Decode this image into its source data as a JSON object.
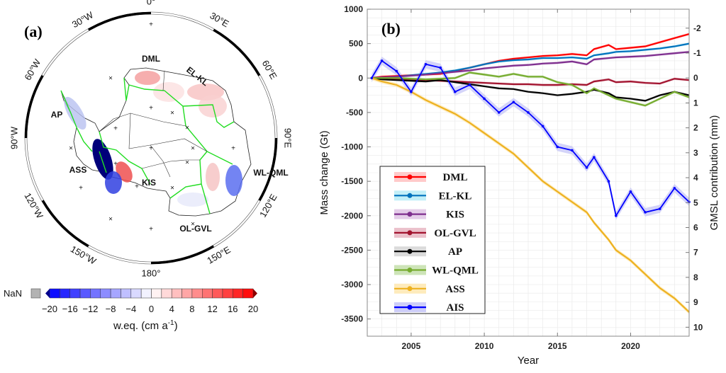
{
  "panel_a": {
    "label": "(a)",
    "longitude_labels": [
      "0°",
      "30°E",
      "60°E",
      "90°E",
      "120°E",
      "150°E",
      "180°",
      "150°W",
      "120°W",
      "90°W",
      "60°W",
      "30°W"
    ],
    "region_labels": [
      "DML",
      "EL-KL",
      "WL-QML",
      "OL-GVL",
      "KIS",
      "ASS",
      "AP"
    ],
    "colorbar": {
      "nan_label": "NaN",
      "ticks": [
        "−20",
        "−16",
        "−12",
        "−8",
        "−4",
        "0",
        "4",
        "8",
        "12",
        "16",
        "20"
      ],
      "label": "w.eq. (cm a",
      "label_sup": "-1",
      "label_end": ")",
      "range": [
        -20,
        20
      ],
      "colors": {
        "neg": "#0000ff",
        "mid": "#ffffff",
        "pos": "#ff0000",
        "nan": "#b3b3b3",
        "low_ext": "#00008b",
        "high_ext": "#8b0000"
      }
    },
    "basin_border_color": "#22dd22"
  },
  "chart_data": {
    "type": "line",
    "panel_label": "(b)",
    "title": "",
    "xlabel": "Year",
    "ylabel": "Mass change (Gt)",
    "y2label": "GMSL contribution (mm)",
    "xlim": [
      2002,
      2024
    ],
    "ylim": [
      -3750,
      1000
    ],
    "y2lim": [
      10.36,
      -2.76
    ],
    "xticks": [
      2005,
      2010,
      2015,
      2020
    ],
    "yticks": [
      1000,
      500,
      0,
      -500,
      -1000,
      -1500,
      -2000,
      -2500,
      -3000,
      -3500
    ],
    "y2ticks": [
      -2,
      -1,
      0,
      1,
      2,
      3,
      4,
      5,
      6,
      7,
      8,
      9,
      10
    ],
    "grid": true,
    "legend_position": "bottom-left",
    "x": [
      2002.3,
      2003,
      2004,
      2005,
      2006,
      2007,
      2008,
      2009,
      2010,
      2011,
      2012,
      2013,
      2014,
      2015,
      2016,
      2017,
      2017.5,
      2018.5,
      2019,
      2020,
      2021,
      2022,
      2023,
      2024
    ],
    "series": [
      {
        "name": "DML",
        "color": "#ff0000",
        "band": "#ffb3b3",
        "values": [
          0,
          20,
          30,
          40,
          50,
          60,
          100,
          150,
          200,
          250,
          280,
          300,
          320,
          330,
          350,
          330,
          420,
          480,
          420,
          440,
          460,
          520,
          580,
          640
        ]
      },
      {
        "name": "EL-KL",
        "color": "#0072bd",
        "band": "#a8e8f5",
        "values": [
          0,
          10,
          20,
          40,
          60,
          80,
          110,
          150,
          200,
          240,
          260,
          270,
          290,
          290,
          300,
          280,
          330,
          360,
          380,
          390,
          410,
          430,
          460,
          500
        ]
      },
      {
        "name": "KIS",
        "color": "#7e2f8e",
        "band": "#d8b8e0",
        "values": [
          0,
          10,
          20,
          35,
          50,
          70,
          90,
          110,
          140,
          160,
          180,
          190,
          210,
          220,
          240,
          200,
          270,
          290,
          300,
          310,
          320,
          340,
          360,
          380
        ]
      },
      {
        "name": "OL-GVL",
        "color": "#a2142f",
        "band": "#e3a6b5",
        "values": [
          0,
          0,
          -10,
          -20,
          -30,
          -40,
          -50,
          -60,
          -70,
          -80,
          -90,
          -90,
          -100,
          -100,
          -90,
          -100,
          -50,
          -20,
          -60,
          -50,
          -70,
          -80,
          -10,
          -30
        ]
      },
      {
        "name": "AP",
        "color": "#000000",
        "band": "#cccccc",
        "values": [
          0,
          -20,
          -30,
          -40,
          -50,
          -30,
          -60,
          -90,
          -120,
          -150,
          -160,
          -200,
          -220,
          -250,
          -230,
          -200,
          -170,
          -220,
          -280,
          -300,
          -330,
          -250,
          -200,
          -250
        ]
      },
      {
        "name": "WL-QML",
        "color": "#77ac30",
        "band": "#b8d99a",
        "values": [
          0,
          0,
          0,
          -10,
          -20,
          -10,
          0,
          80,
          50,
          20,
          60,
          20,
          20,
          -60,
          -100,
          -220,
          -150,
          -250,
          -300,
          -350,
          -400,
          -300,
          -200,
          -280
        ]
      },
      {
        "name": "ASS",
        "color": "#edb120",
        "band": "#fde3a0",
        "values": [
          0,
          -50,
          -100,
          -200,
          -320,
          -420,
          -520,
          -650,
          -800,
          -950,
          -1100,
          -1300,
          -1500,
          -1650,
          -1800,
          -1950,
          -2100,
          -2350,
          -2500,
          -2650,
          -2850,
          -3050,
          -3200,
          -3400
        ]
      },
      {
        "name": "AIS",
        "color": "#0000ff",
        "band": "#b8b8f5",
        "values": [
          0,
          250,
          100,
          -200,
          200,
          150,
          -200,
          -100,
          -300,
          -500,
          -350,
          -500,
          -700,
          -1000,
          -1050,
          -1300,
          -1150,
          -1500,
          -2000,
          -1650,
          -1950,
          -1900,
          -1600,
          -1800
        ]
      }
    ]
  }
}
